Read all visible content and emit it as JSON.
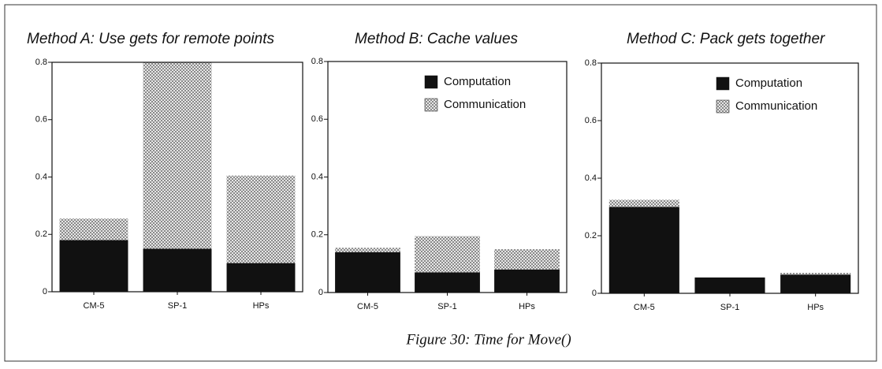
{
  "chart_data": [
    {
      "type": "bar",
      "stacked": true,
      "title": "Method A: Use gets for remote points",
      "categories": [
        "CM-5",
        "SP-1",
        "HPs"
      ],
      "series": [
        {
          "name": "Computation",
          "color": "#111111",
          "values": [
            0.18,
            0.15,
            0.1
          ]
        },
        {
          "name": "Communication",
          "color": "#8a8a8a",
          "pattern": "crosshatch",
          "values": [
            0.075,
            0.65,
            0.305
          ]
        }
      ],
      "ylim": [
        0,
        0.8
      ],
      "yticks": [
        0,
        0.2,
        0.4,
        0.6,
        0.8
      ]
    },
    {
      "type": "bar",
      "stacked": true,
      "title": "Method B: Cache values",
      "categories": [
        "CM-5",
        "SP-1",
        "HPs"
      ],
      "series": [
        {
          "name": "Computation",
          "color": "#111111",
          "values": [
            0.14,
            0.07,
            0.08
          ]
        },
        {
          "name": "Communication",
          "color": "#8a8a8a",
          "pattern": "crosshatch",
          "values": [
            0.015,
            0.125,
            0.07
          ]
        }
      ],
      "ylim": [
        0,
        0.8
      ],
      "yticks": [
        0,
        0.2,
        0.4,
        0.6,
        0.8
      ],
      "legend": "upper right"
    },
    {
      "type": "bar",
      "stacked": true,
      "title": "Method C: Pack gets together",
      "categories": [
        "CM-5",
        "SP-1",
        "HPs"
      ],
      "series": [
        {
          "name": "Computation",
          "color": "#111111",
          "values": [
            0.3,
            0.055,
            0.065
          ]
        },
        {
          "name": "Communication",
          "color": "#8a8a8a",
          "pattern": "crosshatch",
          "values": [
            0.025,
            0,
            0.006
          ]
        }
      ],
      "ylim": [
        0,
        0.8
      ],
      "yticks": [
        0,
        0.2,
        0.4,
        0.6,
        0.8
      ],
      "legend": "upper right"
    }
  ],
  "caption": "Figure 30: Time for Move()"
}
